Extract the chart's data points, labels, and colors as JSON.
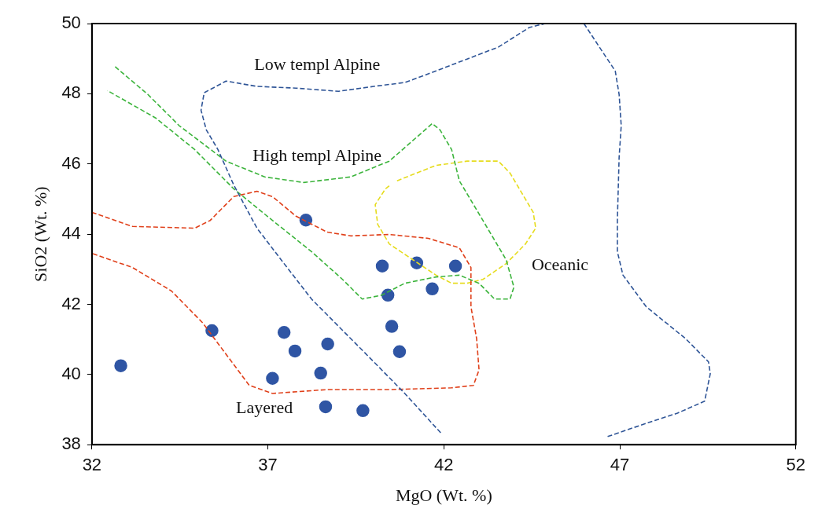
{
  "chart_data": {
    "type": "scatter",
    "xlabel": "MgO (Wt. %)",
    "ylabel": "SiO2 (Wt. %)",
    "xlim": [
      32,
      52
    ],
    "ylim": [
      38,
      50
    ],
    "xticks": [
      32,
      37,
      42,
      47,
      52
    ],
    "yticks": [
      38,
      40,
      42,
      44,
      46,
      48,
      50
    ],
    "series": [
      {
        "type": "line",
        "color": "#2f5597",
        "line_style": "dashed",
        "marker": "none",
        "x": [
          41.91,
          40.89,
          40.01,
          39.12,
          38.24,
          37.46,
          36.69,
          36.03,
          35.58,
          35.25,
          35.1,
          35.19,
          35.81,
          36.69,
          37.8,
          39.01,
          40.01,
          40.89,
          41.78,
          42.66,
          43.55,
          44.43,
          44.88,
          45.98,
          46.42,
          46.87,
          46.98,
          47.04,
          46.98,
          46.93,
          46.93,
          47.09,
          47.75,
          48.86,
          49.52,
          49.57,
          49.41,
          48.64,
          47.75,
          46.65
        ],
        "values": [
          38.34,
          39.46,
          40.36,
          41.26,
          42.15,
          43.16,
          44.17,
          45.4,
          46.41,
          46.97,
          47.53,
          48.03,
          48.36,
          48.21,
          48.16,
          48.07,
          48.21,
          48.32,
          48.65,
          48.99,
          49.33,
          49.89,
          50,
          50,
          49.33,
          48.65,
          47.98,
          47.09,
          46.19,
          44.39,
          43.5,
          42.83,
          41.93,
          41.03,
          40.36,
          40.02,
          39.24,
          38.9,
          38.61,
          38.23
        ]
      },
      {
        "type": "line",
        "color": "#3cb43c",
        "line_style": "dashed",
        "marker": "none",
        "x": [
          32.66,
          33.59,
          34.48,
          35.81,
          36.91,
          38.02,
          39.35,
          40.45,
          41.34,
          41.67,
          41.89,
          42.22,
          42.44,
          43.11,
          43.77,
          43.99,
          43.88,
          43.44,
          43.0,
          42.44,
          41.78,
          40.89,
          40.23,
          39.68,
          39.12,
          38.24,
          37.13,
          36.03,
          34.92,
          33.81,
          32.44
        ],
        "values": [
          48.77,
          47.98,
          47.09,
          46.08,
          45.63,
          45.47,
          45.63,
          46.08,
          46.86,
          47.15,
          46.97,
          46.41,
          45.52,
          44.39,
          43.27,
          42.49,
          42.15,
          42.15,
          42.6,
          42.83,
          42.78,
          42.6,
          42.26,
          42.15,
          42.71,
          43.5,
          44.39,
          45.29,
          46.41,
          47.31,
          48.09
        ]
      },
      {
        "type": "line",
        "color": "#e0401a",
        "line_style": "dashed",
        "marker": "none",
        "x": [
          32.0,
          33.15,
          34.92,
          35.36,
          36.03,
          36.69,
          37.13,
          37.8,
          38.68,
          39.35,
          40.45,
          41.56,
          42.44,
          42.77,
          42.77,
          42.93,
          43.0,
          42.84,
          42.22,
          40.45,
          38.68,
          37.13,
          36.47,
          35.81,
          35.14,
          34.26,
          33.15,
          32.0
        ],
        "values": [
          44.62,
          44.22,
          44.17,
          44.39,
          45.07,
          45.22,
          45.07,
          44.51,
          44.06,
          43.95,
          43.99,
          43.88,
          43.61,
          43.05,
          41.93,
          41.03,
          40.13,
          39.69,
          39.62,
          39.57,
          39.57,
          39.46,
          39.69,
          40.58,
          41.48,
          42.38,
          43.05,
          43.45
        ]
      },
      {
        "type": "line",
        "color": "#e6dc1e",
        "line_style": "dashed",
        "marker": "none",
        "x": [
          40.67,
          41.78,
          42.66,
          43.55,
          43.88,
          44.21,
          44.54,
          44.61,
          44.32,
          43.77,
          43.11,
          42.66,
          42.22,
          41.78,
          41.12,
          40.45,
          40.12,
          40.05,
          40.34,
          40.5
        ],
        "values": [
          45.52,
          45.96,
          46.08,
          46.08,
          45.74,
          45.18,
          44.62,
          44.17,
          43.72,
          43.16,
          42.71,
          42.6,
          42.6,
          42.83,
          43.27,
          43.72,
          44.28,
          44.84,
          45.29,
          45.42
        ]
      },
      {
        "type": "scatter",
        "color": "#2f55a4",
        "marker": "circle",
        "x": [
          32.82,
          35.41,
          38.08,
          37.46,
          37.77,
          38.7,
          37.13,
          38.5,
          38.64,
          39.7,
          40.25,
          40.41,
          40.52,
          40.74,
          41.23,
          41.67,
          42.33
        ],
        "values": [
          40.25,
          41.25,
          44.4,
          41.2,
          40.67,
          40.87,
          39.89,
          40.04,
          39.08,
          38.97,
          43.09,
          42.26,
          41.37,
          40.65,
          43.18,
          42.44,
          43.09
        ]
      }
    ],
    "annotations": [
      "Low templ Alpine",
      "High templ Alpine",
      "Oceanic",
      "Layered"
    ]
  }
}
